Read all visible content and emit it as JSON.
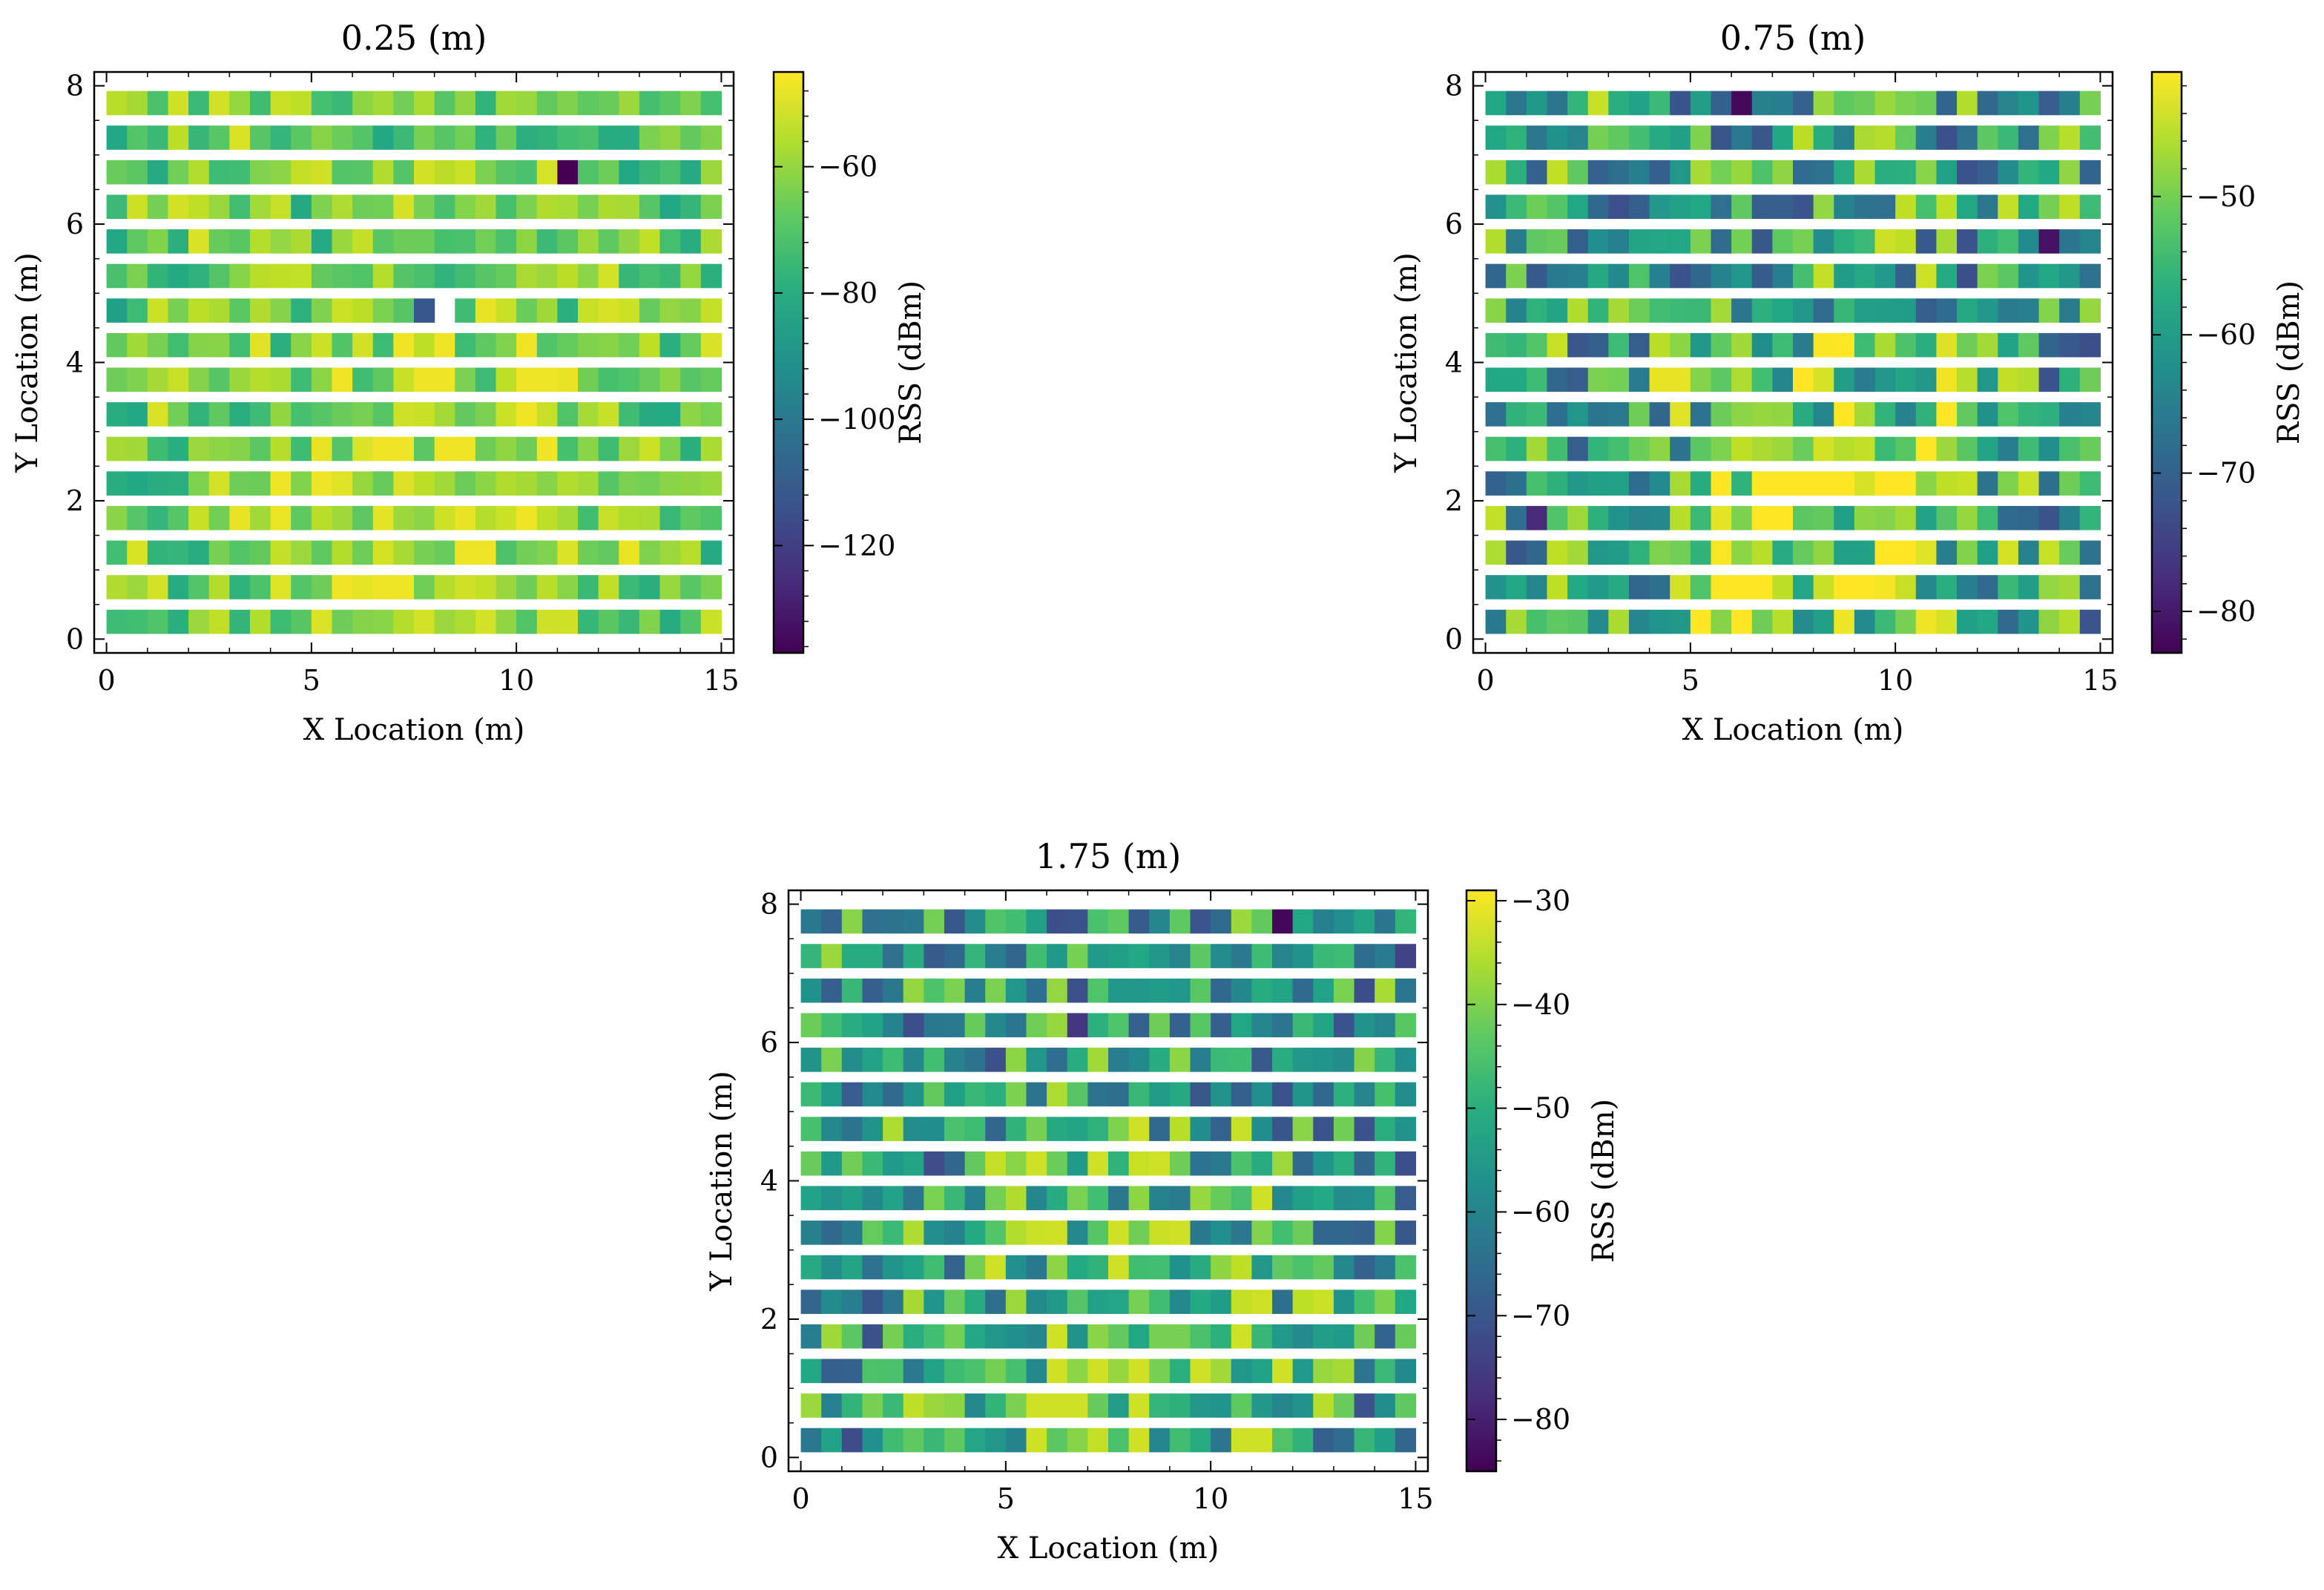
{
  "colormap": "viridis",
  "chart_data": [
    {
      "type": "heatmap",
      "title": "0.25 (m)",
      "xlabel": "X Location (m)",
      "ylabel": "Y Location (m)",
      "xlim": [
        -0.3,
        15.3
      ],
      "ylim": [
        -0.2,
        8.2
      ],
      "xticks": [
        0,
        5,
        10,
        15
      ],
      "xtick_labels": [
        "0",
        "5",
        "10",
        "15"
      ],
      "yticks": [
        0,
        2,
        4,
        6,
        8
      ],
      "ytick_labels": [
        "0",
        "2",
        "4",
        "6",
        "8"
      ],
      "rows_y": [
        0.25,
        0.75,
        1.25,
        1.75,
        2.25,
        2.75,
        3.25,
        3.75,
        4.25,
        4.75,
        5.25,
        5.75,
        6.25,
        6.75,
        7.25,
        7.75
      ],
      "cells_per_row": 30,
      "x_range": [
        0,
        15
      ],
      "colorbar": {
        "label": "RSS (dBm)",
        "vmin": -137,
        "vmax": -45,
        "ticks": [
          -60,
          -80,
          -100,
          -120
        ],
        "tick_labels": [
          "−60",
          "−80",
          "−100",
          "−120"
        ]
      },
      "rss_typical_range": [
        -82,
        -50
      ],
      "notable_cells": [
        {
          "x": 11.25,
          "y": 6.75,
          "rss": -137
        },
        {
          "x": 7.75,
          "y": 4.75,
          "rss": -112
        },
        {
          "x": 0.25,
          "y": 4.75,
          "rss": -85
        }
      ],
      "gaps": [
        {
          "x": 8.25,
          "y": 4.75
        }
      ]
    },
    {
      "type": "heatmap",
      "title": "0.75 (m)",
      "xlabel": "X Location (m)",
      "ylabel": "Y Location (m)",
      "xlim": [
        -0.3,
        15.3
      ],
      "ylim": [
        -0.2,
        8.2
      ],
      "xticks": [
        0,
        5,
        10,
        15
      ],
      "xtick_labels": [
        "0",
        "5",
        "10",
        "15"
      ],
      "yticks": [
        0,
        2,
        4,
        6,
        8
      ],
      "ytick_labels": [
        "0",
        "2",
        "4",
        "6",
        "8"
      ],
      "rows_y": [
        0.25,
        0.75,
        1.25,
        1.75,
        2.25,
        2.75,
        3.25,
        3.75,
        4.25,
        4.75,
        5.25,
        5.75,
        6.25,
        6.75,
        7.25,
        7.75
      ],
      "cells_per_row": 30,
      "x_range": [
        0,
        15
      ],
      "colorbar": {
        "label": "RSS (dBm)",
        "vmin": -83,
        "vmax": -41,
        "ticks": [
          -50,
          -60,
          -70,
          -80
        ],
        "tick_labels": [
          "−50",
          "−60",
          "−70",
          "−80"
        ]
      },
      "rss_typical_range": [
        -73,
        -44
      ],
      "notable_cells": [
        {
          "x": 6.25,
          "y": 7.75,
          "rss": -82
        },
        {
          "x": 13.75,
          "y": 5.75,
          "rss": -81
        },
        {
          "x": 1.25,
          "y": 1.75,
          "rss": -78
        }
      ],
      "gaps": []
    },
    {
      "type": "heatmap",
      "title": "1.75 (m)",
      "xlabel": "X Location (m)",
      "ylabel": "Y Location (m)",
      "xlim": [
        -0.3,
        15.3
      ],
      "ylim": [
        -0.2,
        8.2
      ],
      "xticks": [
        0,
        5,
        10,
        15
      ],
      "xtick_labels": [
        "0",
        "5",
        "10",
        "15"
      ],
      "yticks": [
        0,
        2,
        4,
        6,
        8
      ],
      "ytick_labels": [
        "0",
        "2",
        "4",
        "6",
        "8"
      ],
      "rows_y": [
        0.25,
        0.75,
        1.25,
        1.75,
        2.25,
        2.75,
        3.25,
        3.75,
        4.25,
        4.75,
        5.25,
        5.75,
        6.25,
        6.75,
        7.25,
        7.75
      ],
      "cells_per_row": 30,
      "x_range": [
        0,
        15
      ],
      "colorbar": {
        "label": "RSS (dBm)",
        "vmin": -85,
        "vmax": -29,
        "ticks": [
          -30,
          -40,
          -50,
          -60,
          -70,
          -80
        ],
        "tick_labels": [
          "−30",
          "−40",
          "−50",
          "−60",
          "−70",
          "−80"
        ]
      },
      "rss_typical_range": [
        -72,
        -36
      ],
      "notable_cells": [
        {
          "x": 11.75,
          "y": 7.75,
          "rss": -84
        },
        {
          "x": 14.75,
          "y": 7.25,
          "rss": -74
        },
        {
          "x": 6.75,
          "y": 6.25,
          "rss": -76
        }
      ],
      "gaps": []
    }
  ]
}
